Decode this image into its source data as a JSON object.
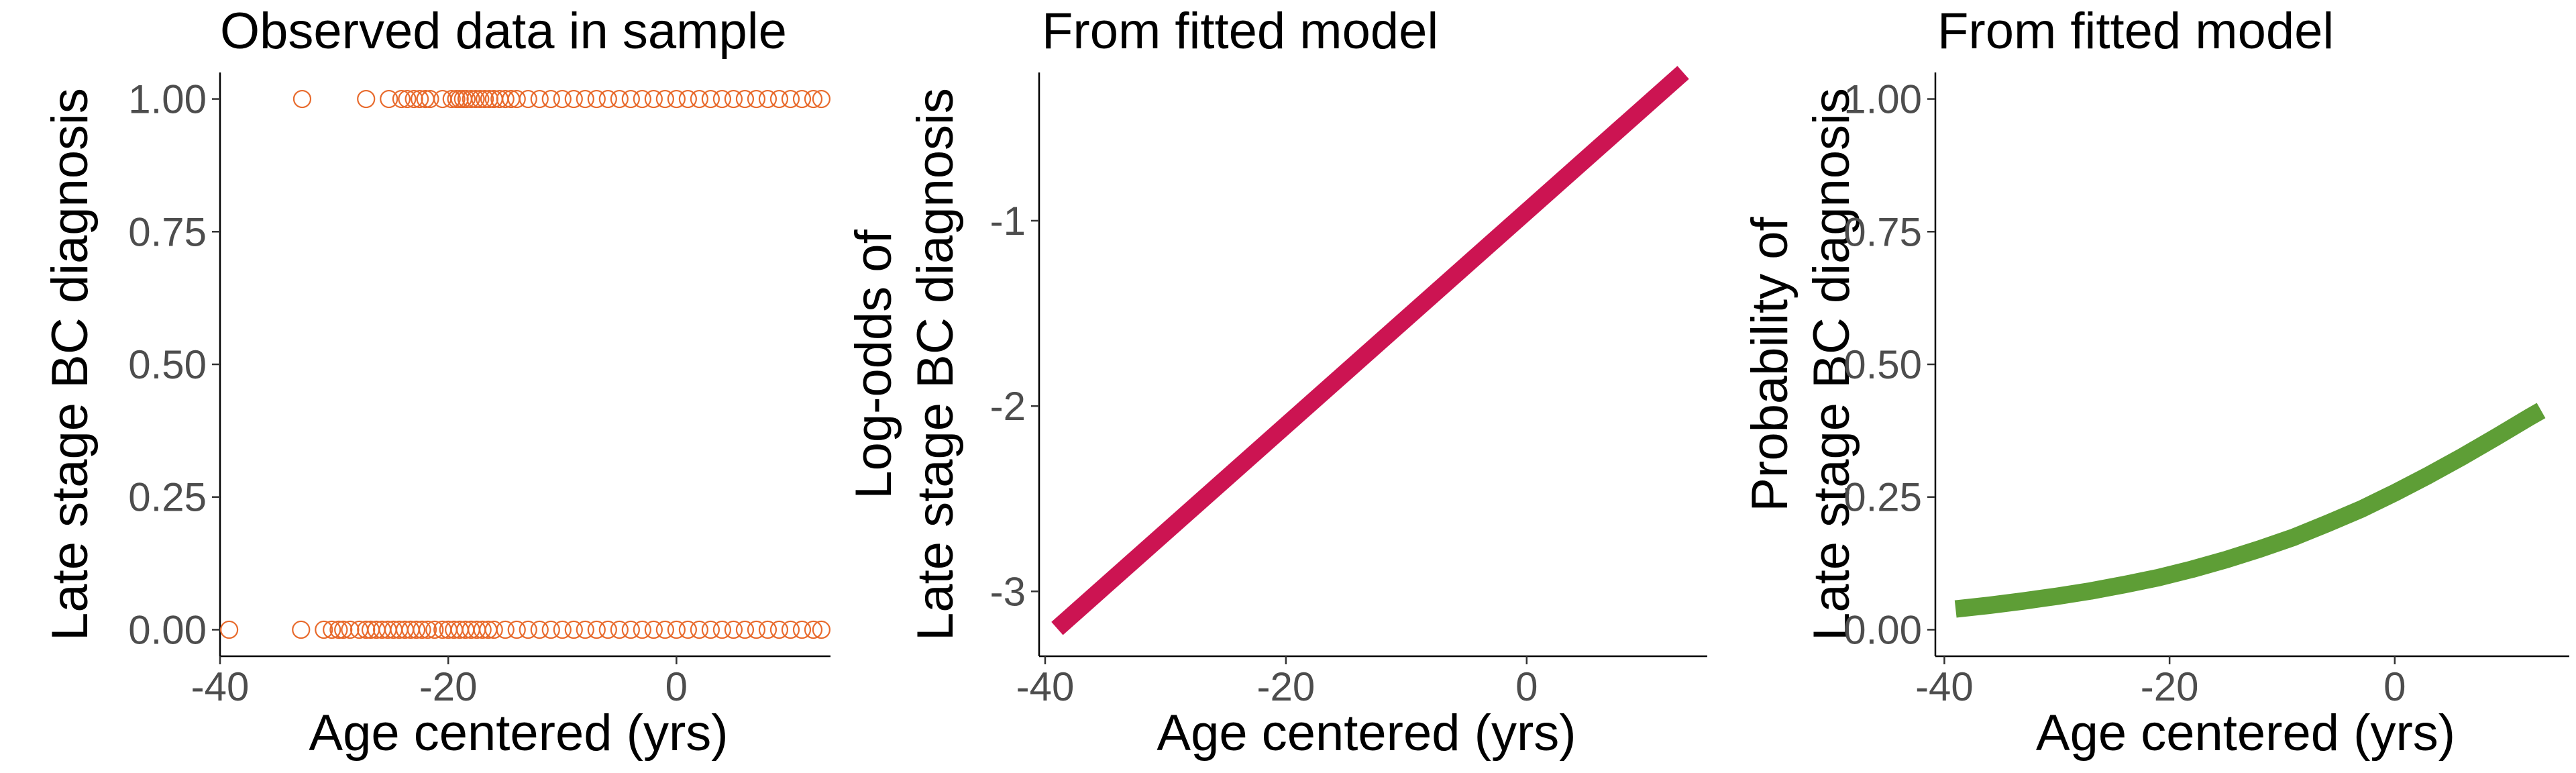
{
  "chart_data": [
    {
      "type": "scatter",
      "title": "Observed data in sample",
      "xlabel": "Age centered (yrs)",
      "ylabel": "Late stage BC diagnosis",
      "xlim": [
        -40,
        13.5
      ],
      "ylim": [
        -0.05,
        1.05
      ],
      "xticks": [
        -40,
        -20,
        0
      ],
      "xtick_labels": [
        "-40",
        "-20",
        "0"
      ],
      "yticks": [
        0,
        0.25,
        0.5,
        0.75,
        1
      ],
      "ytick_labels": [
        "0.00",
        "0.25",
        "0.50",
        "0.75",
        "1.00"
      ],
      "grid": false,
      "color": "#E86A2C",
      "marker": "open-circle",
      "series": [
        {
          "x": [
            -32.8,
            -27.2,
            -25.2,
            -24.1,
            -23.6,
            -23.0,
            -22.5,
            -22.0,
            -21.6,
            -20.5,
            -19.7,
            -19.3,
            -19.0,
            -18.7,
            -18.4,
            -18.0,
            -17.6,
            -17.2,
            -16.8,
            -16.4,
            -16.0,
            -15.5,
            -15.0,
            -14.5,
            -14.0,
            -13.0,
            -12.0,
            -11.0,
            -10.0,
            -9.0,
            -8.0,
            -7.0,
            -6.0,
            -5.0,
            -4.0,
            -3.0,
            -2.0,
            -1.0,
            0.0,
            1.0,
            2.0,
            3.0,
            4.0,
            5.0,
            6.0,
            7.0,
            8.0,
            9.0,
            10.0,
            11.0,
            12.0,
            12.7
          ],
          "y": [
            1,
            1,
            1,
            1,
            1,
            1,
            1,
            1,
            1,
            1,
            1,
            1,
            1,
            1,
            1,
            1,
            1,
            1,
            1,
            1,
            1,
            1,
            1,
            1,
            1,
            1,
            1,
            1,
            1,
            1,
            1,
            1,
            1,
            1,
            1,
            1,
            1,
            1,
            1,
            1,
            1,
            1,
            1,
            1,
            1,
            1,
            1,
            1,
            1,
            1,
            1,
            1
          ]
        },
        {
          "x": [
            -39.2,
            -32.9,
            -30.9,
            -30.2,
            -29.6,
            -29.2,
            -28.6,
            -27.8,
            -27.2,
            -26.8,
            -26.3,
            -25.8,
            -25.3,
            -24.8,
            -24.3,
            -23.8,
            -23.3,
            -22.8,
            -22.3,
            -21.8,
            -21.2,
            -20.5,
            -20.0,
            -19.5,
            -19.0,
            -18.5,
            -18.0,
            -17.5,
            -17.0,
            -16.5,
            -16.0,
            -15.0,
            -14.0,
            -13.0,
            -12.0,
            -11.0,
            -10.0,
            -9.0,
            -8.0,
            -7.0,
            -6.0,
            -5.0,
            -4.0,
            -3.0,
            -2.0,
            -1.0,
            0.0,
            1.0,
            2.0,
            3.0,
            4.0,
            5.0,
            6.0,
            7.0,
            8.0,
            9.0,
            10.0,
            11.0,
            12.0,
            12.7
          ],
          "y": [
            0,
            0,
            0,
            0,
            0,
            0,
            0,
            0,
            0,
            0,
            0,
            0,
            0,
            0,
            0,
            0,
            0,
            0,
            0,
            0,
            0,
            0,
            0,
            0,
            0,
            0,
            0,
            0,
            0,
            0,
            0,
            0,
            0,
            0,
            0,
            0,
            0,
            0,
            0,
            0,
            0,
            0,
            0,
            0,
            0,
            0,
            0,
            0,
            0,
            0,
            0,
            0,
            0,
            0,
            0,
            0,
            0,
            0,
            0,
            0
          ]
        }
      ]
    },
    {
      "type": "line",
      "title": "From fitted model",
      "xlabel": "Age centered (yrs)",
      "ylabel": [
        "Log-odds of",
        "Late stage BC diagnosis"
      ],
      "xlim": [
        -40.5,
        15.0
      ],
      "ylim": [
        -3.35,
        -0.2
      ],
      "xticks": [
        -40,
        -20,
        0
      ],
      "xtick_labels": [
        "-40",
        "-20",
        "0"
      ],
      "yticks": [
        -3,
        -2,
        -1
      ],
      "ytick_labels": [
        "-3",
        "-2",
        "-1"
      ],
      "grid": false,
      "color": "#CC1452",
      "series": [
        {
          "x": [
            -39,
            13
          ],
          "y": [
            -3.2,
            -0.2
          ]
        }
      ]
    },
    {
      "type": "line",
      "title": "From fitted model",
      "xlabel": "Age centered (yrs)",
      "ylabel": [
        "Probability of",
        "Late stage BC diagnosis"
      ],
      "xlim": [
        -40.8,
        15.5
      ],
      "ylim": [
        -0.05,
        1.05
      ],
      "xticks": [
        -40,
        -20,
        0
      ],
      "xtick_labels": [
        "-40",
        "-20",
        "0"
      ],
      "yticks": [
        0,
        0.25,
        0.5,
        0.75,
        1
      ],
      "ytick_labels": [
        "0.00",
        "0.25",
        "0.50",
        "0.75",
        "1.00"
      ],
      "grid": false,
      "color": "#5E9E36",
      "series": [
        {
          "x": [
            -39,
            -36,
            -33,
            -30,
            -27,
            -24,
            -21,
            -18,
            -15,
            -12,
            -9,
            -6,
            -3,
            0,
            3,
            6,
            9,
            12,
            13
          ],
          "y": [
            0.039,
            0.046,
            0.054,
            0.063,
            0.073,
            0.085,
            0.098,
            0.114,
            0.132,
            0.152,
            0.174,
            0.2,
            0.227,
            0.258,
            0.291,
            0.326,
            0.363,
            0.401,
            0.413
          ]
        }
      ]
    }
  ]
}
